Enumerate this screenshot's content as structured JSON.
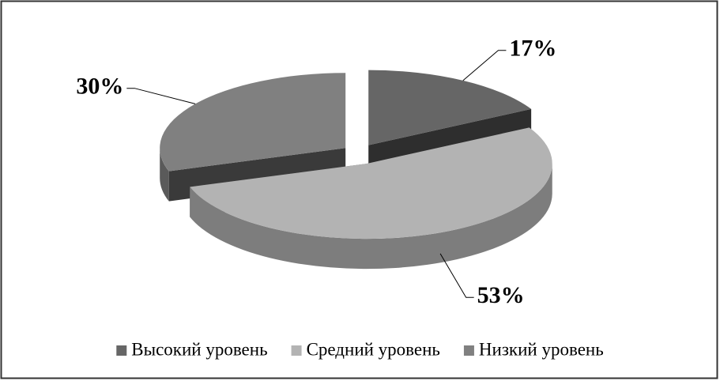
{
  "chart_data": {
    "type": "pie",
    "categories": [
      "Высокий уровень",
      "Средний уровень",
      "Низкий уровень"
    ],
    "values": [
      17,
      53,
      30
    ],
    "value_labels": [
      "17%",
      "53%",
      "30%"
    ],
    "colors": [
      "#666666",
      "#b3b3b3",
      "#808080"
    ],
    "legend": "bottom"
  }
}
